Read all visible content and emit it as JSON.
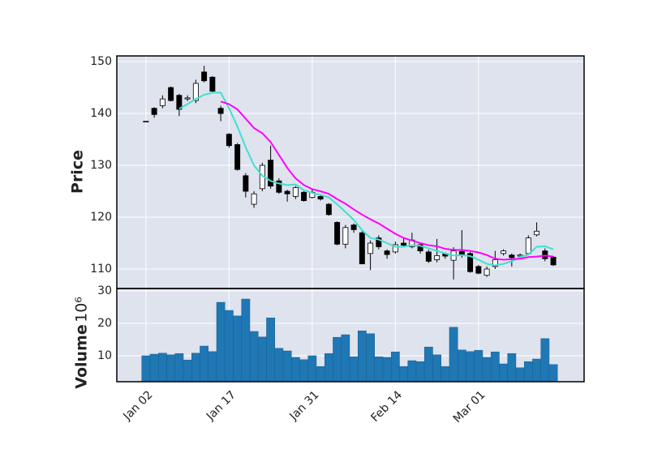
{
  "chart_data": {
    "type": "candlestick",
    "ylabel": "Price",
    "categories": [
      "Jan 02",
      null,
      null,
      null,
      null,
      null,
      null,
      null,
      null,
      null,
      "Jan 17",
      null,
      null,
      null,
      null,
      null,
      null,
      null,
      null,
      null,
      "Jan 31",
      null,
      null,
      null,
      null,
      null,
      null,
      null,
      null,
      null,
      "Feb 14",
      null,
      null,
      null,
      null,
      null,
      null,
      null,
      null,
      null,
      "Mar 01",
      null,
      null,
      null,
      null,
      null,
      null,
      null,
      null,
      null
    ],
    "open": [
      138.5,
      141,
      141.5,
      145,
      143.5,
      142.8,
      142.5,
      148,
      147,
      141,
      136,
      134,
      128,
      122.5,
      125.5,
      131,
      127,
      125,
      124,
      124.8,
      123.8,
      124,
      122.5,
      119,
      114.8,
      118.5,
      117,
      113,
      116,
      113.5,
      113.3,
      115,
      114.3,
      114.7,
      113.3,
      111.8,
      113,
      111.7,
      113.4,
      113,
      110.5,
      108.8,
      110.5,
      113,
      112.7,
      112.5,
      113,
      116.6,
      113.5,
      112.3
    ],
    "high": [
      138.5,
      141.2,
      143.5,
      145.2,
      143.8,
      143.5,
      146.5,
      149.2,
      147.2,
      141.5,
      136.2,
      134.3,
      128.5,
      125,
      130.5,
      133.8,
      127.5,
      125.3,
      126,
      125,
      125.5,
      124.2,
      122.7,
      119.2,
      118.5,
      118.8,
      117.3,
      115.5,
      116.5,
      113.8,
      115.3,
      116,
      117,
      115,
      113.7,
      115.8,
      113.2,
      114.2,
      117.5,
      113.3,
      110.8,
      110.5,
      113.5,
      113.8,
      113,
      113,
      116.5,
      119,
      114,
      112.5
    ],
    "low": [
      138.5,
      139.2,
      141,
      142.3,
      139.5,
      142.4,
      142,
      146,
      144,
      138.5,
      133.4,
      129,
      123.8,
      121.8,
      125,
      125.5,
      124.5,
      123,
      123.5,
      123,
      123.6,
      123.2,
      120.3,
      114.6,
      114,
      117,
      111,
      109.8,
      113.8,
      112,
      113,
      114.2,
      114,
      113,
      111.2,
      111.3,
      112,
      108,
      112.2,
      109.3,
      109,
      108.5,
      110,
      112.6,
      110.5,
      112,
      112.8,
      116.3,
      111.5,
      110.6
    ],
    "close": [
      138.5,
      139.8,
      142.8,
      142.5,
      140.8,
      143,
      145.8,
      146.3,
      144.3,
      140,
      133.8,
      129.2,
      125,
      124.5,
      130,
      126,
      124.8,
      124.5,
      125.7,
      123.2,
      124.8,
      123.5,
      120.5,
      114.8,
      118,
      117.6,
      111,
      115,
      114.3,
      112.8,
      114.7,
      114.6,
      115.6,
      113.5,
      111.5,
      112.6,
      112.5,
      113.5,
      112.6,
      109.5,
      109.2,
      110,
      111.8,
      113.5,
      112.2,
      112.7,
      116,
      117.3,
      112,
      110.8
    ],
    "up_color": "#ffffff",
    "down_color": "#000000",
    "moving_averages": [
      {
        "color": "#40e0d0",
        "values": [
          null,
          null,
          null,
          null,
          140.9,
          141.8,
          142.8,
          143.6,
          144,
          144,
          141,
          137.5,
          133.5,
          130,
          128,
          127,
          126.5,
          126.2,
          126.3,
          125.2,
          124.7,
          124.3,
          123.8,
          122.5,
          121,
          119.5,
          117.5,
          116,
          115.7,
          115,
          114.3,
          114.3,
          114.6,
          114.5,
          114,
          113.5,
          113,
          112.6,
          112.7,
          112.5,
          111.8,
          111,
          110.7,
          111,
          111.5,
          112.3,
          112.8,
          114.3,
          114.4,
          113.8
        ]
      },
      {
        "color": "#ff00ff",
        "values": [
          null,
          null,
          null,
          null,
          null,
          null,
          null,
          null,
          null,
          142.3,
          141.8,
          140.8,
          139,
          137.2,
          136.2,
          134.5,
          132,
          129.5,
          127.5,
          126.2,
          125.4,
          125,
          124.5,
          123.5,
          122.6,
          121.5,
          120.5,
          119.6,
          118.8,
          117.8,
          116.8,
          116,
          115.5,
          115,
          114.6,
          114.4,
          113.9,
          113.7,
          113.7,
          113.5,
          113.2,
          112.7,
          112,
          111.8,
          111.9,
          112,
          112.3,
          112.4,
          112.6,
          112.4
        ]
      }
    ],
    "xlim": [
      -3.5,
      52.7
    ],
    "ylim": [
      106.25,
      151.1
    ],
    "yticks": [
      110,
      120,
      130,
      140,
      150
    ],
    "grid": true,
    "volume": {
      "ylabel": "Volume",
      "offset_label": "10⁶",
      "color": "#1f77b4",
      "values": [
        10,
        10.5,
        10.8,
        10.3,
        10.7,
        8.7,
        10.8,
        13,
        11.3,
        26.5,
        24,
        22.3,
        27.5,
        17.5,
        15.8,
        21.7,
        12.3,
        11.5,
        9.5,
        8.8,
        10,
        6.7,
        10.7,
        15.7,
        16.5,
        9.7,
        17.7,
        16.8,
        9.7,
        9.5,
        11.2,
        6.7,
        8.5,
        8.2,
        12.7,
        10.3,
        6.7,
        18.8,
        11.8,
        11.3,
        11.7,
        9.5,
        11.2,
        7.5,
        10.7,
        6.3,
        8.2,
        9,
        15.3,
        7.3
      ],
      "ylim": [
        2,
        30.75
      ],
      "yticks": [
        10,
        20,
        30
      ]
    }
  }
}
